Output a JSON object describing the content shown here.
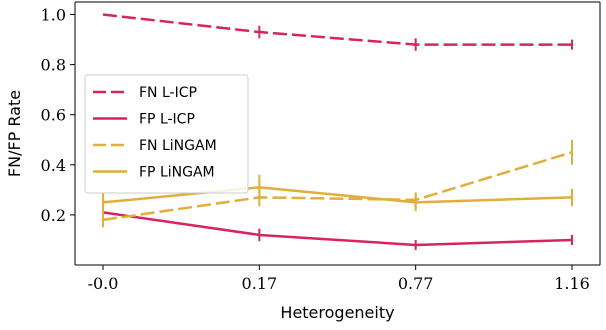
{
  "chart_data": {
    "type": "line",
    "xlabel": "Heterogeneity",
    "ylabel": "FN/FP Rate",
    "categories": [
      "-0.0",
      "0.17",
      "0.77",
      "1.16"
    ],
    "ylim": [
      0.0,
      1.05
    ],
    "yticks": [
      0.2,
      0.4,
      0.6,
      0.8,
      1.0
    ],
    "ytick_labels": [
      "0.2",
      "0.4",
      "0.6",
      "0.8",
      "1.0"
    ],
    "grid": false,
    "legend_position": "center-left",
    "series": [
      {
        "name": "FN L-ICP",
        "color": "#d6245f",
        "dashed": true,
        "values": [
          1.0,
          0.93,
          0.88,
          0.88
        ],
        "err": [
          0.0,
          0.025,
          0.025,
          0.02
        ]
      },
      {
        "name": "FP L-ICP",
        "color": "#d6245f",
        "dashed": false,
        "values": [
          0.21,
          0.12,
          0.08,
          0.1
        ],
        "err": [
          0.0,
          0.025,
          0.02,
          0.02
        ]
      },
      {
        "name": "FN LiNGAM",
        "color": "#e0ae3a",
        "dashed": true,
        "values": [
          0.18,
          0.27,
          0.26,
          0.45
        ],
        "err": [
          0.03,
          0.035,
          0.03,
          0.05
        ]
      },
      {
        "name": "FP LiNGAM",
        "color": "#e0ae3a",
        "dashed": false,
        "values": [
          0.25,
          0.31,
          0.25,
          0.27
        ],
        "err": [
          0.04,
          0.05,
          0.035,
          0.035
        ]
      }
    ]
  }
}
